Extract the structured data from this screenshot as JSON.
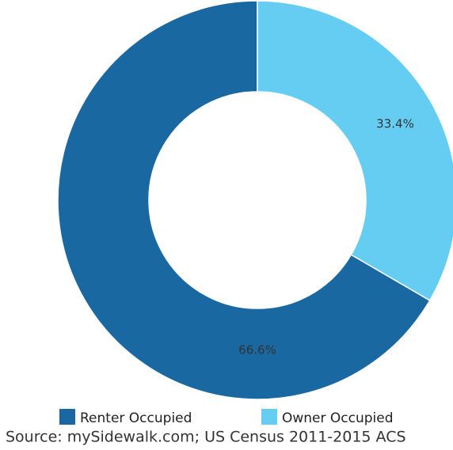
{
  "chart_data": {
    "type": "donut",
    "categories": [
      "Renter Occupied",
      "Owner Occupied"
    ],
    "values": [
      66.6,
      33.4
    ],
    "value_labels": [
      "66.6%",
      "33.4%"
    ],
    "colors": [
      "#1a68a2",
      "#66cdf2"
    ],
    "source": "Source: mySidewalk.com; US Census 2011-2015 ACS"
  }
}
